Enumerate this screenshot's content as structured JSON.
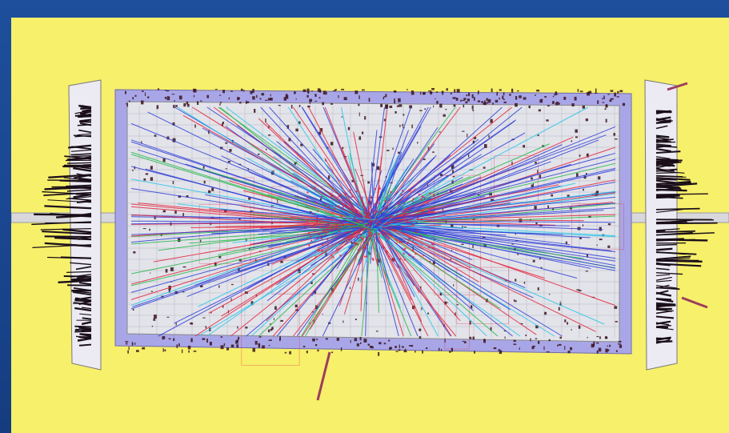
{
  "scene": {
    "subject": "event-display",
    "colors": {
      "background_outer": "#1a4791",
      "background_panel": "#f7f06a",
      "detector_frame": "#a9a6e8",
      "detector_inner": "#e3e3ea",
      "grid_lines": "#8a8a95",
      "track_blue": "#2f3fd6",
      "track_red": "#e3243a",
      "track_cyan": "#26c7e8",
      "track_green": "#25b84a",
      "hits": "#3a1420",
      "endcap_spikes": "#1a0f18",
      "beam_pipe": "#d8d8dc"
    },
    "elements": [
      "central-barrel-detector",
      "left-endcap",
      "right-endcap",
      "beam-pipe",
      "particle-tracks",
      "calorimeter-hits"
    ]
  }
}
